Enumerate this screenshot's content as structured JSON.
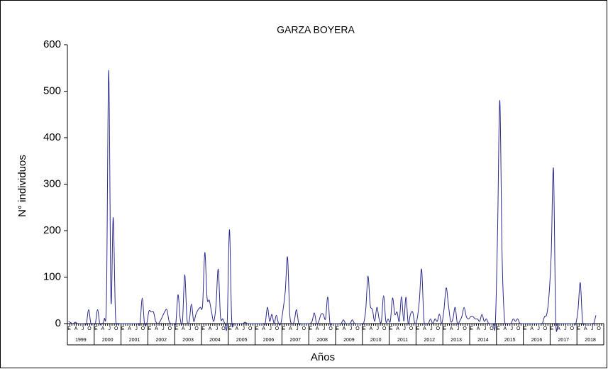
{
  "chart_data": {
    "type": "line",
    "title": "GARZA BOYERA",
    "y_label": "N° individuos",
    "x_label": "Años",
    "ylim": [
      0,
      600
    ],
    "yticks": [
      0,
      100,
      200,
      300,
      400,
      500,
      600
    ],
    "years": [
      "1999",
      "2000",
      "2001",
      "2002",
      "2003",
      "2004",
      "2005",
      "2006",
      "2007",
      "2008",
      "2009",
      "2010",
      "2011",
      "2012",
      "2013",
      "2014",
      "2015",
      "2016",
      "2017",
      "2018"
    ],
    "categories": [
      "E",
      null,
      null,
      "A",
      null,
      null,
      "J",
      null,
      null,
      "O",
      null,
      null,
      "E",
      null,
      null,
      "A",
      null,
      null,
      "J",
      null,
      null,
      "O",
      null,
      null,
      "E",
      null,
      null,
      "A",
      null,
      null,
      "J",
      null,
      null,
      "O",
      null,
      null,
      "E",
      null,
      null,
      "A",
      null,
      null,
      "J",
      null,
      null,
      "O",
      null,
      null,
      "E",
      null,
      null,
      "A",
      null,
      null,
      "J",
      null,
      null,
      "O",
      null,
      null,
      "E",
      null,
      null,
      "A",
      null,
      null,
      "J",
      null,
      null,
      "O",
      null,
      null,
      "E",
      null,
      null,
      "A",
      null,
      null,
      "J",
      null,
      null,
      "O",
      null,
      null,
      "E",
      null,
      null,
      "A",
      null,
      null,
      "J",
      null,
      null,
      "O",
      null,
      null,
      "E",
      null,
      null,
      "A",
      null,
      null,
      "J",
      null,
      null,
      "O",
      null,
      null,
      "E",
      null,
      null,
      "A",
      null,
      null,
      "J",
      null,
      null,
      "O",
      null,
      null,
      "E",
      null,
      null,
      "A",
      null,
      null,
      "J",
      null,
      null,
      "O",
      null,
      null,
      "E",
      null,
      null,
      "A",
      null,
      null,
      "J",
      null,
      null,
      "O",
      null,
      null,
      "E",
      null,
      null,
      "A",
      null,
      null,
      "J",
      null,
      null,
      "O",
      null,
      null,
      "E",
      null,
      null,
      "A",
      null,
      null,
      "J",
      null,
      null,
      "O",
      null,
      null,
      "E",
      null,
      null,
      "A",
      null,
      null,
      "J",
      null,
      null,
      "O",
      null,
      null,
      "E",
      null,
      null,
      "A",
      null,
      null,
      "J",
      null,
      null,
      "O",
      null,
      null,
      "E",
      null,
      null,
      "A",
      null,
      null,
      "J",
      null,
      null,
      "O",
      null,
      null,
      "E",
      null,
      null,
      "A",
      null,
      null,
      "J",
      null,
      null,
      "O",
      null,
      null,
      "E",
      null,
      null,
      "A",
      null,
      null,
      "J",
      null,
      null,
      "O",
      null,
      null,
      "E",
      null,
      null,
      "A",
      null,
      null,
      "J",
      null,
      null,
      "O",
      null,
      null
    ],
    "series": [
      {
        "name": "Garza boyera",
        "color": "#2b2b8f",
        "values": [
          5,
          2,
          0,
          3,
          0,
          0,
          0,
          0,
          0,
          30,
          0,
          0,
          0,
          30,
          0,
          0,
          10,
          60,
          545,
          50,
          228,
          20,
          0,
          0,
          0,
          0,
          0,
          0,
          0,
          0,
          0,
          0,
          0,
          55,
          0,
          0,
          27,
          25,
          25,
          5,
          0,
          5,
          15,
          25,
          30,
          5,
          0,
          0,
          0,
          62,
          10,
          5,
          105,
          10,
          5,
          42,
          5,
          20,
          30,
          35,
          40,
          153,
          55,
          50,
          25,
          5,
          40,
          117,
          15,
          10,
          0,
          0,
          202,
          10,
          0,
          0,
          0,
          0,
          0,
          3,
          0,
          0,
          0,
          0,
          0,
          0,
          0,
          0,
          0,
          35,
          5,
          20,
          0,
          18,
          0,
          0,
          30,
          70,
          143,
          20,
          0,
          5,
          30,
          0,
          0,
          0,
          0,
          0,
          0,
          5,
          23,
          0,
          5,
          20,
          20,
          10,
          57,
          0,
          0,
          0,
          0,
          0,
          0,
          8,
          0,
          0,
          0,
          8,
          0,
          0,
          0,
          0,
          0,
          30,
          102,
          40,
          30,
          5,
          35,
          10,
          5,
          60,
          5,
          10,
          5,
          55,
          20,
          25,
          5,
          58,
          5,
          57,
          0,
          20,
          25,
          0,
          10,
          50,
          117,
          10,
          0,
          0,
          10,
          0,
          10,
          5,
          20,
          0,
          30,
          77,
          40,
          5,
          10,
          35,
          0,
          5,
          15,
          35,
          15,
          10,
          15,
          15,
          10,
          10,
          5,
          20,
          5,
          10,
          0,
          0,
          0,
          0,
          200,
          480,
          150,
          15,
          0,
          0,
          0,
          10,
          5,
          10,
          0,
          0,
          0,
          0,
          0,
          0,
          0,
          0,
          0,
          0,
          0,
          15,
          20,
          60,
          150,
          333,
          10,
          0,
          0,
          0,
          0,
          0,
          0,
          0,
          0,
          0,
          30,
          88,
          5,
          0,
          0,
          0,
          0,
          0,
          18,
          null,
          null,
          null
        ]
      }
    ]
  }
}
